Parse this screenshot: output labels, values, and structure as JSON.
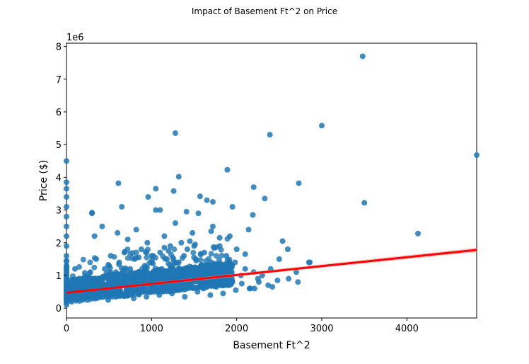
{
  "chart_data": {
    "type": "scatter",
    "title": "Impact of Basement Ft^2 on Price",
    "xlabel": "Basement Ft^2",
    "ylabel": "Price ($)",
    "y_offset_text": "1e6",
    "xlim": [
      0,
      4820
    ],
    "ylim": [
      -0.3,
      8.1
    ],
    "y_scale_factor": 1000000,
    "xticks": [
      0,
      1000,
      2000,
      3000,
      4000
    ],
    "yticks": [
      0,
      1,
      2,
      3,
      4,
      5,
      6,
      7,
      8
    ],
    "grid": false,
    "legend": "none",
    "colors": {
      "points": "#1f77b4",
      "regression_line": "#ff0000",
      "confidence_band": "#f4a6a6"
    },
    "regression": {
      "x": [
        0,
        4820
      ],
      "y": [
        0.47,
        1.78
      ],
      "ci_halfwidth": [
        0.03,
        0.07
      ]
    },
    "series": [
      {
        "x": [
          0,
          0,
          0,
          0,
          0,
          0,
          0,
          0,
          0,
          0,
          0,
          0,
          0,
          0,
          0,
          0,
          0,
          100,
          150,
          180,
          200,
          220,
          250,
          280,
          300,
          320,
          350,
          380,
          400,
          420,
          450,
          480,
          500,
          520,
          550,
          580,
          600,
          620,
          650,
          680,
          700,
          720,
          750,
          780,
          800,
          820,
          850,
          880,
          900,
          920,
          950,
          980,
          1000,
          1020,
          1050,
          1080,
          1100,
          1120,
          1150,
          1180,
          1200,
          1220,
          1250,
          1280,
          1300,
          1320,
          1350,
          1380,
          1400,
          1420,
          1450,
          1480,
          1500,
          1520,
          1550,
          1580,
          1600,
          1620,
          1650,
          1680,
          1700,
          1720,
          1750,
          1780,
          1800,
          1820,
          1850,
          1880,
          1900,
          1920,
          1950,
          1980,
          2000,
          2050,
          2100,
          2150,
          2200,
          2250,
          2300,
          2400,
          2500,
          2600,
          2700,
          2850,
          3000,
          3480,
          3500,
          4130,
          4820,
          1280,
          2390,
          2730,
          610,
          1050,
          1260,
          1320,
          1890,
          2200,
          2330,
          2860,
          650,
          300,
          330,
          960,
          1100,
          1410,
          1570,
          1720,
          1950,
          2140,
          2190,
          2540,
          1000,
          1200,
          1500,
          1800,
          850,
          1150,
          1450,
          1700,
          2100,
          120,
          260,
          410,
          560,
          710,
          860,
          1010,
          1160,
          1310,
          1460,
          1610,
          1760,
          1910,
          2060,
          2160,
          2260,
          2370,
          2480,
          2610,
          2720,
          180,
          340,
          490,
          640,
          790,
          940,
          1090,
          1240,
          1390,
          1540,
          1690,
          1840,
          1990,
          2210,
          2420
        ],
        "y": [
          0.1,
          0.3,
          0.5,
          0.8,
          1.0,
          1.3,
          1.6,
          1.9,
          2.2,
          2.5,
          2.8,
          3.1,
          3.4,
          3.65,
          3.85,
          4.5,
          0.7,
          1.2,
          0.6,
          0.8,
          0.9,
          1.0,
          0.7,
          1.1,
          2.9,
          0.8,
          1.5,
          0.6,
          0.9,
          2.5,
          1.2,
          0.7,
          1.3,
          1.6,
          0.9,
          1.1,
          2.3,
          1.4,
          0.8,
          1.7,
          1.0,
          2.1,
          1.2,
          0.9,
          1.5,
          2.4,
          1.1,
          1.8,
          0.7,
          1.3,
          2.0,
          1.0,
          1.4,
          1.6,
          3.0,
          0.9,
          1.7,
          1.2,
          2.2,
          1.5,
          0.8,
          1.9,
          1.3,
          2.6,
          1.1,
          1.4,
          2.0,
          1.6,
          0.9,
          1.8,
          1.2,
          2.3,
          1.0,
          1.5,
          2.9,
          1.3,
          0.8,
          1.7,
          3.3,
          1.1,
          1.4,
          2.5,
          1.0,
          1.2,
          1.9,
          0.9,
          1.3,
          1.6,
          1.1,
          2.2,
          0.8,
          1.4,
          1.8,
          1.0,
          1.2,
          0.6,
          1.1,
          0.9,
          1.0,
          1.2,
          1.5,
          1.8,
          1.1,
          1.4,
          5.58,
          7.7,
          3.22,
          2.28,
          4.68,
          5.35,
          5.3,
          3.82,
          3.82,
          3.65,
          3.58,
          4.02,
          4.23,
          3.7,
          3.35,
          1.4,
          3.1,
          2.92,
          2.2,
          3.4,
          3.0,
          2.95,
          3.42,
          3.25,
          3.1,
          2.4,
          2.85,
          2.05,
          1.6,
          1.75,
          1.9,
          2.15,
          1.55,
          1.85,
          2.05,
          2.35,
          1.65,
          0.5,
          0.55,
          0.45,
          0.6,
          0.5,
          0.55,
          0.6,
          0.65,
          0.55,
          0.7,
          0.6,
          0.65,
          0.7,
          0.75,
          0.6,
          0.8,
          0.7,
          0.85,
          0.9,
          0.8,
          0.3,
          0.35,
          0.25,
          0.4,
          0.3,
          0.35,
          0.4,
          0.45,
          0.35,
          0.5,
          0.4,
          0.45,
          0.55,
          0.6,
          0.65
        ]
      }
    ]
  }
}
